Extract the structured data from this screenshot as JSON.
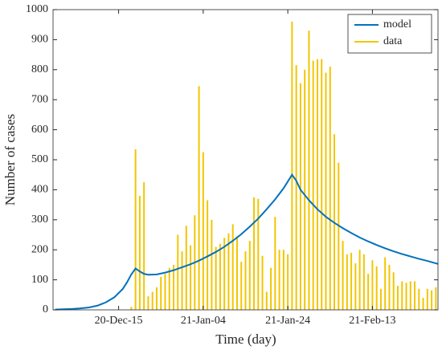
{
  "chart_data": {
    "type": "combo",
    "xlabel": "Time (day)",
    "ylabel": "Number of cases",
    "xlim": [
      -0.5,
      90.5
    ],
    "ylim": [
      0,
      1000
    ],
    "xticks": [
      {
        "value": 15,
        "label": "20-Dec-15"
      },
      {
        "value": 35,
        "label": "21-Jan-04"
      },
      {
        "value": 55,
        "label": "21-Jan-24"
      },
      {
        "value": 75,
        "label": "21-Feb-13"
      }
    ],
    "yticks": [
      0,
      100,
      200,
      300,
      400,
      500,
      600,
      700,
      800,
      900,
      1000
    ],
    "legend": "top-right",
    "series": [
      {
        "name": "model",
        "type": "line",
        "color": "#0072bd",
        "x": [
          0,
          2,
          4,
          6,
          8,
          10,
          12,
          14,
          16,
          17,
          18,
          19,
          20,
          21,
          22,
          24,
          26,
          28,
          30,
          32,
          34,
          36,
          38,
          40,
          42,
          44,
          46,
          48,
          50,
          52,
          54,
          56,
          57,
          58,
          60,
          62,
          64,
          66,
          68,
          70,
          72,
          74,
          76,
          78,
          80,
          82,
          84,
          86,
          88,
          90,
          90.5
        ],
        "values": [
          1,
          2,
          3,
          5,
          8,
          14,
          25,
          42,
          70,
          92,
          118,
          138,
          128,
          120,
          117,
          118,
          124,
          132,
          142,
          152,
          164,
          178,
          193,
          210,
          230,
          252,
          277,
          304,
          335,
          368,
          405,
          450,
          430,
          400,
          365,
          335,
          310,
          290,
          272,
          256,
          241,
          228,
          216,
          205,
          195,
          186,
          178,
          170,
          163,
          155,
          153
        ]
      },
      {
        "name": "data",
        "type": "bar",
        "color": "#f2c600",
        "x": [
          18,
          19,
          20,
          21,
          22,
          23,
          24,
          25,
          26,
          27,
          28,
          29,
          30,
          31,
          32,
          33,
          34,
          35,
          36,
          37,
          38,
          39,
          40,
          41,
          42,
          43,
          44,
          45,
          46,
          47,
          48,
          49,
          50,
          51,
          52,
          53,
          54,
          55,
          56,
          57,
          58,
          59,
          60,
          61,
          62,
          63,
          64,
          65,
          66,
          67,
          68,
          69,
          70,
          71,
          72,
          73,
          74,
          75,
          76,
          77,
          78,
          79,
          80,
          81,
          82,
          83,
          84,
          85,
          86,
          87,
          88,
          89,
          90
        ],
        "values": [
          10,
          535,
          380,
          425,
          45,
          60,
          75,
          110,
          120,
          140,
          150,
          250,
          195,
          280,
          215,
          315,
          745,
          525,
          365,
          300,
          210,
          220,
          240,
          255,
          285,
          245,
          160,
          195,
          230,
          375,
          370,
          180,
          60,
          140,
          310,
          200,
          200,
          185,
          960,
          815,
          755,
          800,
          930,
          830,
          835,
          835,
          790,
          810,
          585,
          490,
          230,
          185,
          190,
          155,
          200,
          185,
          120,
          165,
          145,
          70,
          175,
          150,
          125,
          80,
          95,
          90,
          95,
          95,
          70,
          40,
          70,
          65,
          75
        ]
      }
    ]
  }
}
